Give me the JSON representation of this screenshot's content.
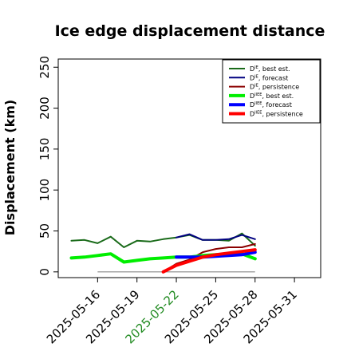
{
  "chart_data": {
    "type": "line",
    "title": "Ice edge displacement distance",
    "xlabel": "",
    "ylabel": "Displacement (km)",
    "xlim": [
      "2025-05-13",
      "2025-06-02"
    ],
    "ylim": [
      -7,
      260
    ],
    "yticks": [
      0,
      50,
      100,
      150,
      200,
      250
    ],
    "xticks": [
      {
        "date": "2025-05-16",
        "label": "2025-05-16",
        "color": "#000000"
      },
      {
        "date": "2025-05-19",
        "label": "2025-05-19",
        "color": "#000000"
      },
      {
        "date": "2025-05-22",
        "label": "2025-05-22",
        "color": "#228B22"
      },
      {
        "date": "2025-05-25",
        "label": "2025-05-25",
        "color": "#000000"
      },
      {
        "date": "2025-05-28",
        "label": "2025-05-28",
        "color": "#000000"
      },
      {
        "date": "2025-05-31",
        "label": "2025-05-31",
        "color": "#000000"
      }
    ],
    "legend_position": "top-right",
    "series": [
      {
        "name": "D_IE best est.",
        "sub": "IE",
        "desc": "best est.",
        "color": "#1a6b1a",
        "width": 2,
        "x": [
          "2025-05-14",
          "2025-05-15",
          "2025-05-16",
          "2025-05-17",
          "2025-05-18",
          "2025-05-19",
          "2025-05-20",
          "2025-05-21",
          "2025-05-22",
          "2025-05-23",
          "2025-05-24",
          "2025-05-25",
          "2025-05-26",
          "2025-05-27",
          "2025-05-28"
        ],
        "y": [
          38,
          39,
          35,
          43,
          30,
          38,
          37,
          40,
          42,
          45,
          39,
          39,
          38,
          47,
          32
        ]
      },
      {
        "name": "D_IE forecast",
        "sub": "IE",
        "desc": "forecast",
        "color": "#000080",
        "width": 2,
        "x": [
          "2025-05-22",
          "2025-05-23",
          "2025-05-24",
          "2025-05-25",
          "2025-05-26",
          "2025-05-27",
          "2025-05-28"
        ],
        "y": [
          42,
          46,
          39,
          39,
          40,
          45,
          40
        ]
      },
      {
        "name": "D_IE persistence",
        "sub": "IE",
        "desc": "persistence",
        "color": "#8b0000",
        "width": 2,
        "x": [
          "2025-05-21",
          "2025-05-22",
          "2025-05-23",
          "2025-05-24",
          "2025-05-25",
          "2025-05-26",
          "2025-05-27",
          "2025-05-28"
        ],
        "y": [
          0,
          10,
          15,
          24,
          28,
          30,
          30,
          34
        ]
      },
      {
        "name": "D_IIEE best est.",
        "sub": "IIEE",
        "desc": "best est.",
        "color": "#00ee00",
        "width": 4,
        "x": [
          "2025-05-14",
          "2025-05-15",
          "2025-05-16",
          "2025-05-17",
          "2025-05-18",
          "2025-05-19",
          "2025-05-20",
          "2025-05-21",
          "2025-05-22",
          "2025-05-23",
          "2025-05-24",
          "2025-05-25",
          "2025-05-26",
          "2025-05-27",
          "2025-05-28"
        ],
        "y": [
          17,
          18,
          20,
          22,
          12,
          14,
          16,
          17,
          18,
          18,
          20,
          21,
          22,
          22,
          16
        ]
      },
      {
        "name": "D_IIEE forecast",
        "sub": "IIEE",
        "desc": "forecast",
        "color": "#0000ff",
        "width": 4,
        "x": [
          "2025-05-22",
          "2025-05-23",
          "2025-05-24",
          "2025-05-25",
          "2025-05-26",
          "2025-05-27",
          "2025-05-28"
        ],
        "y": [
          18,
          18,
          18,
          19,
          20,
          21,
          24
        ]
      },
      {
        "name": "D_IIEE persistence",
        "sub": "IIEE",
        "desc": "persistence",
        "color": "#ff0000",
        "width": 4,
        "x": [
          "2025-05-21",
          "2025-05-22",
          "2025-05-23",
          "2025-05-24",
          "2025-05-25",
          "2025-05-26",
          "2025-05-27",
          "2025-05-28"
        ],
        "y": [
          0,
          8,
          13,
          18,
          21,
          23,
          25,
          27
        ]
      }
    ],
    "baseline": {
      "y": 0,
      "x": [
        "2025-05-16",
        "2025-05-28"
      ],
      "color": "#888888"
    }
  }
}
